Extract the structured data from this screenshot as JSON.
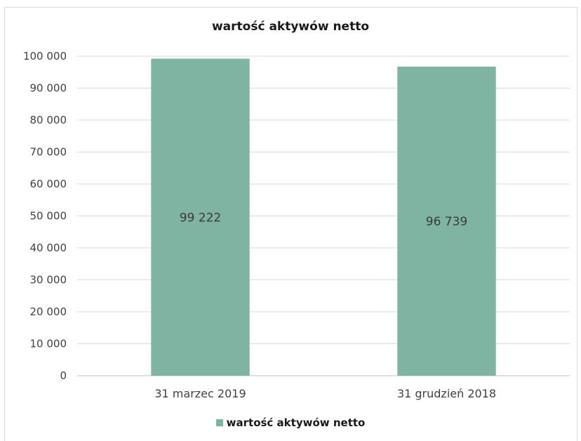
{
  "chart_data": {
    "type": "bar",
    "title": "wartość aktywów netto",
    "categories": [
      "31 marzec 2019",
      "31 grudzień 2018"
    ],
    "series": [
      {
        "name": "wartość aktywów netto",
        "values": [
          99222,
          96739
        ],
        "data_labels": [
          "99 222",
          "96 739"
        ],
        "color": "#80b4a2"
      }
    ],
    "ylim": [
      0,
      100000
    ],
    "yticks": [
      0,
      10000,
      20000,
      30000,
      40000,
      50000,
      60000,
      70000,
      80000,
      90000,
      100000
    ],
    "ytick_labels": [
      "0",
      "10 000",
      "20 000",
      "30 000",
      "40 000",
      "50 000",
      "60 000",
      "70 000",
      "80 000",
      "90 000",
      "100 000"
    ],
    "grid": true,
    "legend_position": "bottom",
    "xlabel": "",
    "ylabel": ""
  },
  "colors": {
    "grid": "#d9d9d9",
    "axis": "#bfbfbf"
  }
}
